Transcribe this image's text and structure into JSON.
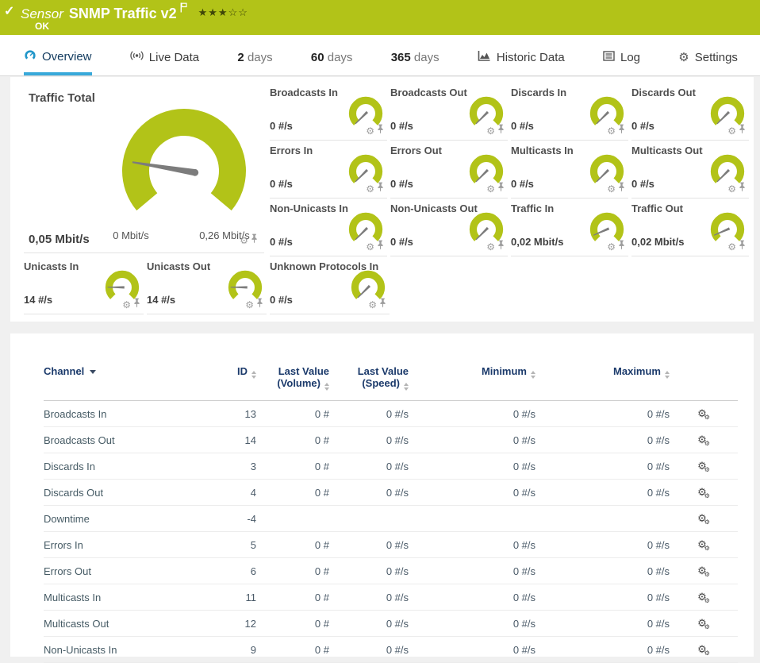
{
  "header": {
    "check_glyph": "✓",
    "kind": "Sensor",
    "title": "SNMP Traffic v2",
    "status": "OK",
    "rating_filled": 3,
    "rating_total": 5
  },
  "tabs": [
    {
      "label": "Overview",
      "icon": "gauge-icon",
      "active": true
    },
    {
      "label": "Live Data",
      "icon": "live-icon"
    },
    {
      "num": "2",
      "label": "days"
    },
    {
      "num": "60",
      "label": "days"
    },
    {
      "num": "365",
      "label": "days"
    },
    {
      "label": "Historic Data",
      "icon": "chart-icon"
    },
    {
      "label": "Log",
      "icon": "log-icon"
    },
    {
      "label": "Settings",
      "icon": "settings-icon"
    }
  ],
  "gauges": {
    "main": {
      "title": "Traffic Total",
      "value": "0,05 Mbit/s",
      "min_label": "0 Mbit/s",
      "max_label": "0,26 Mbit/s",
      "fraction": 0.19
    },
    "small": [
      {
        "title": "Broadcasts In",
        "value": "0 #/s",
        "fraction": 0
      },
      {
        "title": "Broadcasts Out",
        "value": "0 #/s",
        "fraction": 0
      },
      {
        "title": "Discards In",
        "value": "0 #/s",
        "fraction": 0
      },
      {
        "title": "Discards Out",
        "value": "0 #/s",
        "fraction": 0
      },
      {
        "title": "Errors In",
        "value": "0 #/s",
        "fraction": 0
      },
      {
        "title": "Errors Out",
        "value": "0 #/s",
        "fraction": 0
      },
      {
        "title": "Multicasts In",
        "value": "0 #/s",
        "fraction": 0
      },
      {
        "title": "Multicasts Out",
        "value": "0 #/s",
        "fraction": 0
      },
      {
        "title": "Non-Unicasts In",
        "value": "0 #/s",
        "fraction": 0
      },
      {
        "title": "Non-Unicasts Out",
        "value": "0 #/s",
        "fraction": 0
      },
      {
        "title": "Traffic In",
        "value": "0,02 Mbit/s",
        "fraction": 0.08
      },
      {
        "title": "Traffic Out",
        "value": "0,02 Mbit/s",
        "fraction": 0.08
      }
    ],
    "bottom": [
      {
        "title": "Unicasts In",
        "value": "14 #/s",
        "fraction": 0.17
      },
      {
        "title": "Unicasts Out",
        "value": "14 #/s",
        "fraction": 0.17
      },
      {
        "title": "Unknown Protocols In",
        "value": "0 #/s",
        "fraction": 0
      }
    ]
  },
  "table": {
    "columns": [
      {
        "label": "Channel",
        "sorted": true
      },
      {
        "label": "ID",
        "sortable": true
      },
      {
        "label": "Last Value",
        "sub": "(Volume)",
        "sortable": true
      },
      {
        "label": "Last Value",
        "sub": "(Speed)",
        "sortable": true
      },
      {
        "label": "Minimum",
        "sortable": true
      },
      {
        "label": "Maximum",
        "sortable": true
      }
    ],
    "rows": [
      {
        "channel": "Broadcasts In",
        "id": "13",
        "volume": "0 #",
        "speed": "0 #/s",
        "minimum": "0 #/s",
        "maximum": "0 #/s"
      },
      {
        "channel": "Broadcasts Out",
        "id": "14",
        "volume": "0 #",
        "speed": "0 #/s",
        "minimum": "0 #/s",
        "maximum": "0 #/s"
      },
      {
        "channel": "Discards In",
        "id": "3",
        "volume": "0 #",
        "speed": "0 #/s",
        "minimum": "0 #/s",
        "maximum": "0 #/s"
      },
      {
        "channel": "Discards Out",
        "id": "4",
        "volume": "0 #",
        "speed": "0 #/s",
        "minimum": "0 #/s",
        "maximum": "0 #/s"
      },
      {
        "channel": "Downtime",
        "id": "-4",
        "volume": "",
        "speed": "",
        "minimum": "",
        "maximum": ""
      },
      {
        "channel": "Errors In",
        "id": "5",
        "volume": "0 #",
        "speed": "0 #/s",
        "minimum": "0 #/s",
        "maximum": "0 #/s"
      },
      {
        "channel": "Errors Out",
        "id": "6",
        "volume": "0 #",
        "speed": "0 #/s",
        "minimum": "0 #/s",
        "maximum": "0 #/s"
      },
      {
        "channel": "Multicasts In",
        "id": "11",
        "volume": "0 #",
        "speed": "0 #/s",
        "minimum": "0 #/s",
        "maximum": "0 #/s"
      },
      {
        "channel": "Multicasts Out",
        "id": "12",
        "volume": "0 #",
        "speed": "0 #/s",
        "minimum": "0 #/s",
        "maximum": "0 #/s"
      },
      {
        "channel": "Non-Unicasts In",
        "id": "9",
        "volume": "0 #",
        "speed": "0 #/s",
        "minimum": "0 #/s",
        "maximum": "0 #/s"
      }
    ]
  },
  "colors": {
    "status_green": "#b2c318",
    "gauge_green": "#b2c318",
    "needle_gray": "#7c7c7c",
    "tab_underline_blue": "#38a9da",
    "header_navy": "#1b3a6b"
  }
}
